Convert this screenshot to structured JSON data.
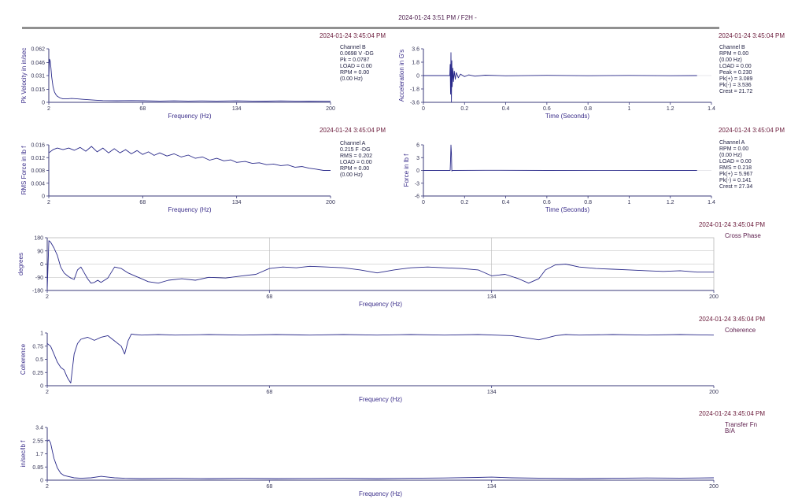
{
  "header": {
    "title": "2024-01-24 3:51 PM / F2H -"
  },
  "colors": {
    "trace": "#2a2a8a",
    "axis": "#3a3a7a",
    "grid": "#b8b8b8",
    "header_bar": "#909090"
  },
  "chart_data": [
    {
      "id": "pk-velocity",
      "type": "line",
      "timestamp": "2024-01-24 3:45:04 PM",
      "xlabel": "Frequency (Hz)",
      "ylabel": "Pk Velocity in in/sec",
      "xlim": [
        2,
        200
      ],
      "ylim": [
        0,
        0.062
      ],
      "xticks": [
        2,
        68,
        134,
        200
      ],
      "xtick_labels": [
        "2",
        "68",
        "134",
        "200"
      ],
      "yticks": [
        0,
        0.015,
        0.031,
        0.046,
        0.062
      ],
      "ytick_labels": [
        "0",
        "0.015",
        "0.031",
        "0.046",
        "0.062"
      ],
      "grid": false,
      "info": [
        "Channel B",
        "0.0698 V -DG",
        "Pk = 0.0787",
        "LOAD = 0.00",
        "RPM = 0.00",
        "(0.00 Hz)"
      ],
      "series": [
        {
          "x": [
            2,
            2.5,
            3,
            3.5,
            4,
            5,
            6,
            7,
            8,
            10,
            12,
            15,
            18,
            22,
            26,
            30,
            35,
            40,
            50,
            60,
            68,
            80,
            90,
            100,
            110,
            120,
            134,
            145,
            155,
            165,
            175,
            185,
            195,
            200
          ],
          "y": [
            0.03,
            0.05,
            0.048,
            0.04,
            0.03,
            0.018,
            0.012,
            0.009,
            0.007,
            0.005,
            0.004,
            0.004,
            0.0045,
            0.004,
            0.0035,
            0.003,
            0.0025,
            0.002,
            0.0018,
            0.002,
            0.0018,
            0.0015,
            0.0017,
            0.0015,
            0.0016,
            0.0015,
            0.0017,
            0.0015,
            0.0014,
            0.0016,
            0.0015,
            0.0014,
            0.0015,
            0.0015
          ]
        }
      ]
    },
    {
      "id": "acceleration",
      "type": "line",
      "timestamp": "2024-01-24 3:45:04 PM",
      "xlabel": "Time (Seconds)",
      "ylabel": "Acceleration in G's",
      "xlim": [
        0,
        1.4
      ],
      "ylim": [
        -3.6,
        3.6
      ],
      "xticks": [
        0,
        0.2,
        0.4,
        0.6,
        0.8,
        1,
        1.2,
        1.4
      ],
      "xtick_labels": [
        "0",
        "0.2",
        "0.4",
        "0.6",
        "0.8",
        "1",
        "1.2",
        "1.4"
      ],
      "yticks": [
        -3.6,
        -1.8,
        0,
        1.8,
        3.6
      ],
      "ytick_labels": [
        "-3.6",
        "-1.8",
        "0",
        "1.8",
        "3.6"
      ],
      "grid": false,
      "info": [
        "Channel B",
        "RPM = 0.00",
        "(0.00 Hz)",
        "LOAD = 0.00",
        "Peak = 0.230",
        "Pk(+) = 3.089",
        "Pk(-) = 3.536",
        "Crest = 21.72"
      ],
      "series": [
        {
          "x": [
            0,
            0.128,
            0.13,
            0.132,
            0.134,
            0.136,
            0.138,
            0.14,
            0.143,
            0.146,
            0.15,
            0.155,
            0.16,
            0.17,
            0.18,
            0.2,
            0.22,
            0.25,
            0.3,
            0.4,
            0.6,
            0.8,
            1.0,
            1.2,
            1.33
          ],
          "y": [
            0,
            0,
            1.5,
            -2.5,
            3.089,
            -3.536,
            2.0,
            -1.5,
            1.0,
            -0.8,
            0.6,
            -0.5,
            0.4,
            -0.3,
            0.2,
            -0.15,
            0.1,
            -0.08,
            0.05,
            -0.03,
            0.03,
            -0.02,
            0.02,
            -0.02,
            0
          ]
        }
      ]
    },
    {
      "id": "rms-force",
      "type": "line",
      "timestamp": "2024-01-24 3:45:04 PM",
      "xlabel": "Frequency (Hz)",
      "ylabel": "RMS Force in lb f",
      "xlim": [
        2,
        200
      ],
      "ylim": [
        0,
        0.016
      ],
      "xticks": [
        2,
        68,
        134,
        200
      ],
      "xtick_labels": [
        "2",
        "68",
        "134",
        "200"
      ],
      "yticks": [
        0,
        0.004,
        0.008,
        0.012,
        0.016
      ],
      "ytick_labels": [
        "0",
        "0.004",
        "0.008",
        "0.012",
        "0.016"
      ],
      "grid": false,
      "info": [
        "Channel A",
        "0.215 F -DG",
        "RMS = 0.202",
        "LOAD = 0.00",
        "RPM = 0.00",
        "(0.00 Hz)"
      ],
      "series": [
        {
          "x": [
            2,
            5,
            8,
            12,
            16,
            20,
            24,
            28,
            32,
            36,
            40,
            44,
            48,
            52,
            56,
            60,
            64,
            68,
            72,
            76,
            80,
            85,
            90,
            95,
            100,
            105,
            110,
            115,
            120,
            125,
            130,
            134,
            140,
            145,
            150,
            155,
            160,
            165,
            170,
            175,
            180,
            185,
            190,
            195,
            200
          ],
          "y": [
            0.0135,
            0.0145,
            0.015,
            0.0145,
            0.015,
            0.0143,
            0.0152,
            0.014,
            0.0155,
            0.0138,
            0.015,
            0.0135,
            0.0148,
            0.0135,
            0.0145,
            0.0132,
            0.0142,
            0.013,
            0.0138,
            0.0127,
            0.0135,
            0.0125,
            0.0132,
            0.0122,
            0.0128,
            0.0118,
            0.0122,
            0.0112,
            0.0118,
            0.011,
            0.0113,
            0.0105,
            0.0108,
            0.0102,
            0.0104,
            0.0098,
            0.01,
            0.0095,
            0.0097,
            0.009,
            0.0092,
            0.0087,
            0.0084,
            0.008,
            0.008
          ]
        }
      ]
    },
    {
      "id": "force-time",
      "type": "line",
      "timestamp": "2024-01-24 3:45:04 PM",
      "xlabel": "Time (Seconds)",
      "ylabel": "Force in lb f",
      "xlim": [
        0,
        1.4
      ],
      "ylim": [
        -6,
        6
      ],
      "xticks": [
        0,
        0.2,
        0.4,
        0.6,
        0.8,
        1,
        1.2,
        1.4
      ],
      "xtick_labels": [
        "0",
        "0.2",
        "0.4",
        "0.6",
        "0.8",
        "1",
        "1.2",
        "1.4"
      ],
      "yticks": [
        -6,
        -3,
        0,
        3,
        6
      ],
      "ytick_labels": [
        "-6",
        "-3",
        "0",
        "3",
        "6"
      ],
      "grid": false,
      "info": [
        "Channel A",
        "RPM = 0.00",
        "(0.00 Hz)",
        "LOAD = 0.00",
        "RMS = 0.218",
        "Pk(+) = 5.967",
        "Pk(-) = 0.141",
        "Crest = 27.34"
      ],
      "series": [
        {
          "x": [
            0,
            0.13,
            0.132,
            0.134,
            0.136,
            0.138,
            0.14,
            0.15,
            0.3,
            0.6,
            0.9,
            1.2,
            1.33
          ],
          "y": [
            0,
            0,
            2.5,
            5.967,
            4.0,
            -0.141,
            0,
            0,
            0.03,
            0,
            0.02,
            0,
            0
          ]
        }
      ]
    },
    {
      "id": "cross-phase",
      "type": "line",
      "timestamp": "2024-01-24 3:45:04 PM",
      "label": "Cross Phase",
      "xlabel": "Frequency (Hz)",
      "ylabel": "degrees",
      "xlim": [
        2,
        200
      ],
      "ylim": [
        -180,
        180
      ],
      "xticks": [
        2,
        68,
        134,
        200
      ],
      "xtick_labels": [
        "2",
        "68",
        "134",
        "200"
      ],
      "yticks": [
        -180,
        -90,
        0,
        90,
        180
      ],
      "ytick_labels": [
        "-180",
        "-90",
        "0",
        "90",
        "180"
      ],
      "grid": true,
      "series": [
        {
          "x": [
            2,
            2.5,
            3,
            4,
            5,
            6,
            7,
            8,
            9,
            10,
            11,
            12,
            13,
            14,
            15,
            16,
            17,
            18,
            20,
            22,
            24,
            26,
            28,
            30,
            32,
            35,
            38,
            42,
            46,
            50,
            55,
            60,
            64,
            68,
            72,
            76,
            80,
            85,
            90,
            95,
            100,
            105,
            110,
            115,
            120,
            125,
            130,
            134,
            138,
            142,
            145,
            148,
            150,
            153,
            156,
            160,
            165,
            170,
            175,
            180,
            185,
            190,
            195,
            200
          ],
          "y": [
            -170,
            160,
            150,
            110,
            60,
            -20,
            -60,
            -80,
            -95,
            -105,
            -40,
            -20,
            -60,
            -100,
            -130,
            -125,
            -110,
            -125,
            -95,
            -20,
            -30,
            -60,
            -80,
            -100,
            -120,
            -130,
            -110,
            -100,
            -110,
            -90,
            -95,
            -80,
            -70,
            -30,
            -20,
            -25,
            -15,
            -20,
            -25,
            -40,
            -60,
            -40,
            -25,
            -20,
            -25,
            -30,
            -40,
            -80,
            -70,
            -100,
            -130,
            -100,
            -40,
            -5,
            0,
            -20,
            -30,
            -35,
            -40,
            -45,
            -50,
            -45,
            -55,
            -55
          ]
        }
      ]
    },
    {
      "id": "coherence",
      "type": "line",
      "timestamp": "2024-01-24 3:45:04 PM",
      "label": "Coherence",
      "xlabel": "Frequency (Hz)",
      "ylabel": "Coherence",
      "xlim": [
        2,
        200
      ],
      "ylim": [
        0,
        1
      ],
      "xticks": [
        2,
        68,
        134,
        200
      ],
      "xtick_labels": [
        "2",
        "68",
        "134",
        "200"
      ],
      "yticks": [
        0,
        0.25,
        0.5,
        0.75,
        1
      ],
      "ytick_labels": [
        "0",
        "0.25",
        "0.5",
        "0.75",
        "1"
      ],
      "grid": false,
      "series": [
        {
          "x": [
            2,
            3,
            4,
            5,
            6,
            7,
            8,
            9,
            10,
            11,
            12,
            13,
            14,
            16,
            18,
            20,
            22,
            24,
            25,
            26,
            27,
            28,
            30,
            35,
            40,
            50,
            60,
            70,
            80,
            90,
            100,
            110,
            120,
            130,
            140,
            145,
            148,
            150,
            153,
            156,
            160,
            170,
            180,
            190,
            200
          ],
          "y": [
            0.8,
            0.75,
            0.6,
            0.45,
            0.35,
            0.3,
            0.15,
            0.05,
            0.6,
            0.8,
            0.88,
            0.9,
            0.92,
            0.86,
            0.92,
            0.95,
            0.85,
            0.75,
            0.6,
            0.85,
            0.98,
            0.97,
            0.96,
            0.97,
            0.96,
            0.97,
            0.96,
            0.97,
            0.96,
            0.97,
            0.96,
            0.97,
            0.96,
            0.97,
            0.95,
            0.9,
            0.87,
            0.9,
            0.95,
            0.97,
            0.96,
            0.97,
            0.96,
            0.97,
            0.96
          ]
        }
      ]
    },
    {
      "id": "transfer-fn",
      "type": "line",
      "timestamp": "2024-01-24 3:45:04 PM",
      "label": "Transfer Fn",
      "sublabel": "B/A",
      "xlabel": "Frequency (Hz)",
      "ylabel": "in/sec/lb f",
      "xlim": [
        2,
        200
      ],
      "ylim": [
        0,
        3.4
      ],
      "xticks": [
        2,
        68,
        134,
        200
      ],
      "xtick_labels": [
        "2",
        "68",
        "134",
        "200"
      ],
      "yticks": [
        0,
        0.85,
        1.7,
        2.55,
        3.4
      ],
      "ytick_labels": [
        "0",
        "0.85",
        "1.7",
        "2.55",
        "3.4"
      ],
      "grid": false,
      "series": [
        {
          "x": [
            2,
            2.5,
            3,
            3.5,
            4,
            5,
            6,
            7,
            8,
            10,
            12,
            15,
            18,
            20,
            22,
            25,
            30,
            40,
            50,
            60,
            70,
            80,
            90,
            100,
            110,
            120,
            130,
            134,
            140,
            150,
            160,
            170,
            180,
            190,
            200
          ],
          "y": [
            2.5,
            2.6,
            2.4,
            1.9,
            1.4,
            0.8,
            0.45,
            0.3,
            0.25,
            0.15,
            0.12,
            0.15,
            0.25,
            0.2,
            0.15,
            0.12,
            0.1,
            0.12,
            0.1,
            0.12,
            0.1,
            0.11,
            0.12,
            0.1,
            0.12,
            0.14,
            0.18,
            0.2,
            0.15,
            0.12,
            0.1,
            0.12,
            0.14,
            0.13,
            0.15
          ]
        }
      ]
    }
  ]
}
